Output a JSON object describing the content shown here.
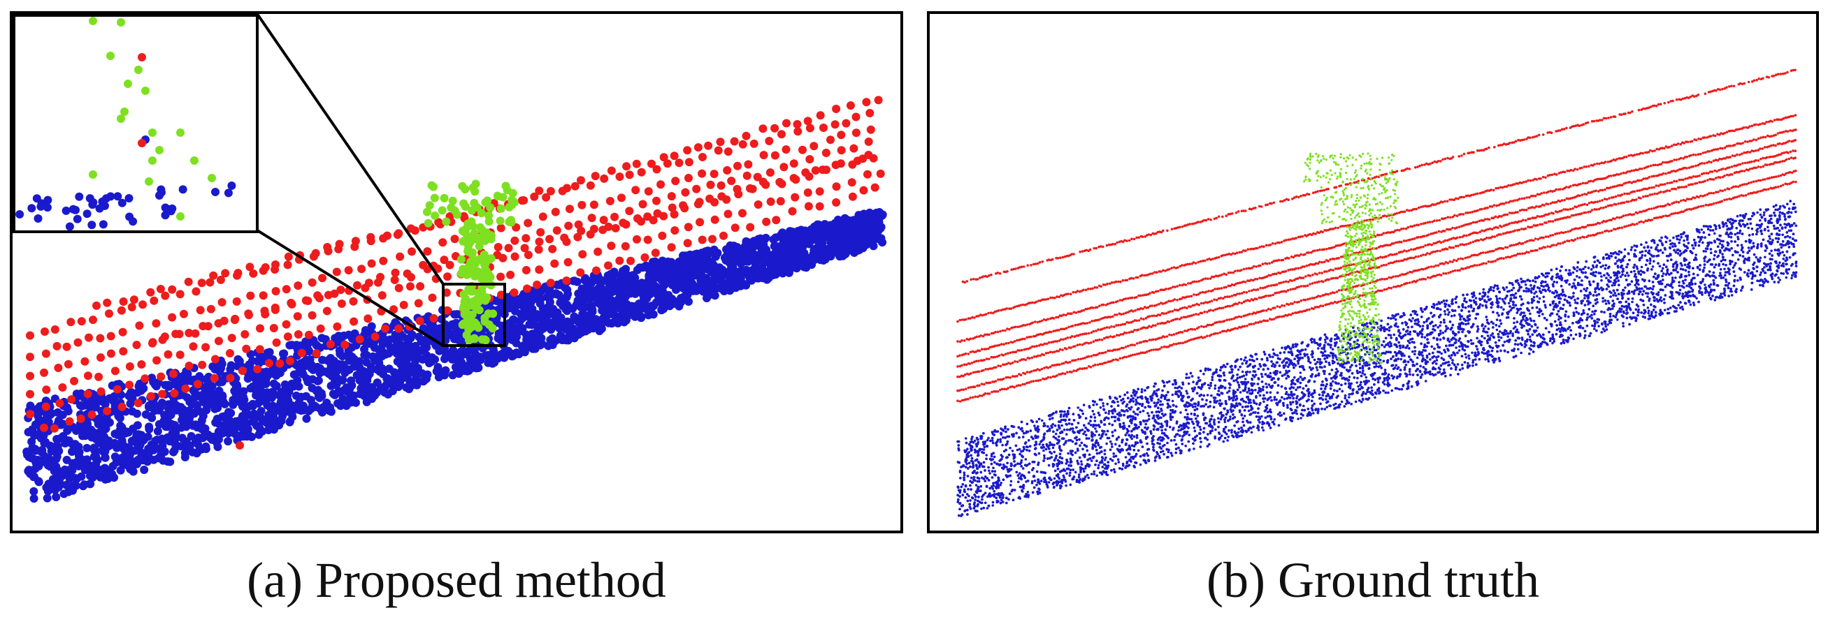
{
  "panels": [
    {
      "caption": "(a) Proposed method"
    },
    {
      "caption": "(b) Ground truth"
    }
  ],
  "colors": {
    "power_line": "#ee1c1c",
    "ground": "#1a1acc",
    "tower": "#7ee021",
    "frame": "#000000"
  }
}
